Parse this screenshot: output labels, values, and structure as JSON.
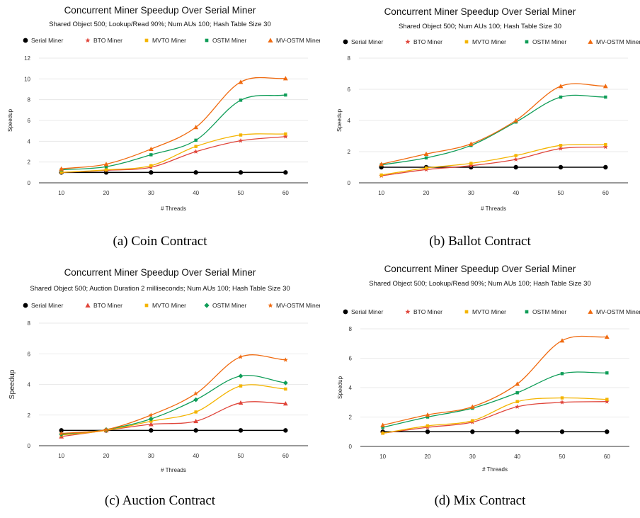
{
  "chart_data": [
    {
      "type": "line",
      "title": "Concurrent Miner Speedup Over Serial Miner",
      "subtitle": "Shared Object 500; Lookup/Read 90%; Num AUs 100; Hash Table Size 30",
      "xlabel": "# Threads",
      "ylabel": "Speedup",
      "caption": "(a) Coin Contract",
      "x": [
        10,
        20,
        30,
        40,
        50,
        60
      ],
      "ylim": [
        0,
        12
      ],
      "yticks": [
        0,
        2,
        4,
        6,
        8,
        10,
        12
      ],
      "legend_position": "top",
      "grid": true,
      "series": [
        {
          "name": "Serial Miner",
          "color": "#000000",
          "marker": "circle",
          "values": [
            1,
            1,
            1,
            1,
            1,
            1
          ]
        },
        {
          "name": "BTO Miner",
          "color": "#e0453a",
          "marker": "star",
          "values": [
            1.0,
            1.2,
            1.5,
            3.0,
            4.05,
            4.45
          ]
        },
        {
          "name": "MVTO Miner",
          "color": "#f4b400",
          "marker": "square",
          "values": [
            1.0,
            1.25,
            1.65,
            3.5,
            4.6,
            4.7
          ]
        },
        {
          "name": "OSTM Miner",
          "color": "#0f9d58",
          "marker": "square",
          "values": [
            1.25,
            1.55,
            2.7,
            4.1,
            7.95,
            8.45
          ]
        },
        {
          "name": "MV-OSTM Miner",
          "color": "#f06a0f",
          "marker": "triangle",
          "values": [
            1.35,
            1.8,
            3.25,
            5.35,
            9.7,
            10.05
          ]
        }
      ]
    },
    {
      "type": "line",
      "title": "Concurrent Miner Speedup Over Serial Miner",
      "subtitle": "Shared Object 500;  Num AUs 100; Hash Table Size 30",
      "xlabel": "# Threads",
      "ylabel": "Speedup",
      "caption": "(b) Ballot Contract",
      "x": [
        10,
        20,
        30,
        40,
        50,
        60
      ],
      "ylim": [
        0,
        8
      ],
      "yticks": [
        0,
        2,
        4,
        6,
        8
      ],
      "legend_position": "top",
      "grid": true,
      "series": [
        {
          "name": "Serial Miner",
          "color": "#000000",
          "marker": "circle",
          "values": [
            1,
            1,
            1,
            1,
            1,
            1
          ]
        },
        {
          "name": "BTO Miner",
          "color": "#e0453a",
          "marker": "star",
          "values": [
            0.45,
            0.85,
            1.1,
            1.5,
            2.2,
            2.3
          ]
        },
        {
          "name": "MVTO Miner",
          "color": "#f4b400",
          "marker": "square",
          "values": [
            0.5,
            0.95,
            1.25,
            1.75,
            2.4,
            2.45
          ]
        },
        {
          "name": "OSTM Miner",
          "color": "#0f9d58",
          "marker": "square",
          "values": [
            1.15,
            1.6,
            2.4,
            3.9,
            5.5,
            5.5
          ]
        },
        {
          "name": "MV-OSTM Miner",
          "color": "#f06a0f",
          "marker": "triangle",
          "values": [
            1.2,
            1.85,
            2.5,
            4.0,
            6.2,
            6.2
          ]
        }
      ]
    },
    {
      "type": "line",
      "title": "Concurrent Miner Speedup Over Serial Miner",
      "subtitle": "Shared Object 500; Auction Duration 2 milliseconds; Num AUs 100; Hash Table Size 30",
      "xlabel": "# Threads",
      "ylabel": "Speedup",
      "caption": "(c) Auction Contract",
      "x": [
        10,
        20,
        30,
        40,
        50,
        60
      ],
      "ylim": [
        0,
        8
      ],
      "yticks": [
        0,
        2,
        4,
        6,
        8
      ],
      "legend_position": "top",
      "grid": true,
      "series": [
        {
          "name": "Serial Miner",
          "color": "#000000",
          "marker": "circle",
          "values": [
            1,
            1,
            1,
            1,
            1,
            1
          ]
        },
        {
          "name": "BTO Miner",
          "color": "#e0453a",
          "marker": "triangle",
          "values": [
            0.6,
            1.0,
            1.4,
            1.6,
            2.8,
            2.75
          ]
        },
        {
          "name": "MVTO Miner",
          "color": "#f4b400",
          "marker": "square",
          "values": [
            0.7,
            1.0,
            1.6,
            2.2,
            3.9,
            3.7
          ]
        },
        {
          "name": "OSTM Miner",
          "color": "#0f9d58",
          "marker": "diamond",
          "values": [
            0.75,
            1.05,
            1.75,
            3.0,
            4.55,
            4.1
          ]
        },
        {
          "name": "MV-OSTM Miner",
          "color": "#f06a0f",
          "marker": "star",
          "values": [
            0.8,
            1.05,
            2.0,
            3.4,
            5.8,
            5.6
          ]
        }
      ]
    },
    {
      "type": "line",
      "title": "Concurrent Miner Speedup Over Serial Miner",
      "subtitle": "Shared Object 500; Lookup/Read 90%; Num AUs 100; Hash Table Size 30",
      "xlabel": "# Threads",
      "ylabel": "Speedup",
      "caption": "(d) Mix Contract",
      "x": [
        10,
        20,
        30,
        40,
        50,
        60
      ],
      "ylim": [
        0,
        8
      ],
      "yticks": [
        0,
        2,
        4,
        6,
        8
      ],
      "legend_position": "top",
      "grid": true,
      "series": [
        {
          "name": "Serial Miner",
          "color": "#000000",
          "marker": "circle",
          "values": [
            1,
            1,
            1,
            1,
            1,
            1
          ]
        },
        {
          "name": "BTO Miner",
          "color": "#e0453a",
          "marker": "star",
          "values": [
            0.9,
            1.3,
            1.65,
            2.7,
            3.0,
            3.05
          ]
        },
        {
          "name": "MVTO Miner",
          "color": "#f4b400",
          "marker": "square",
          "values": [
            0.9,
            1.4,
            1.75,
            3.05,
            3.3,
            3.2
          ]
        },
        {
          "name": "OSTM Miner",
          "color": "#0f9d58",
          "marker": "square",
          "values": [
            1.3,
            2.0,
            2.6,
            3.65,
            4.95,
            5.0
          ]
        },
        {
          "name": "MV-OSTM Miner",
          "color": "#f06a0f",
          "marker": "triangle",
          "values": [
            1.45,
            2.15,
            2.7,
            4.25,
            7.2,
            7.45
          ]
        }
      ]
    }
  ]
}
